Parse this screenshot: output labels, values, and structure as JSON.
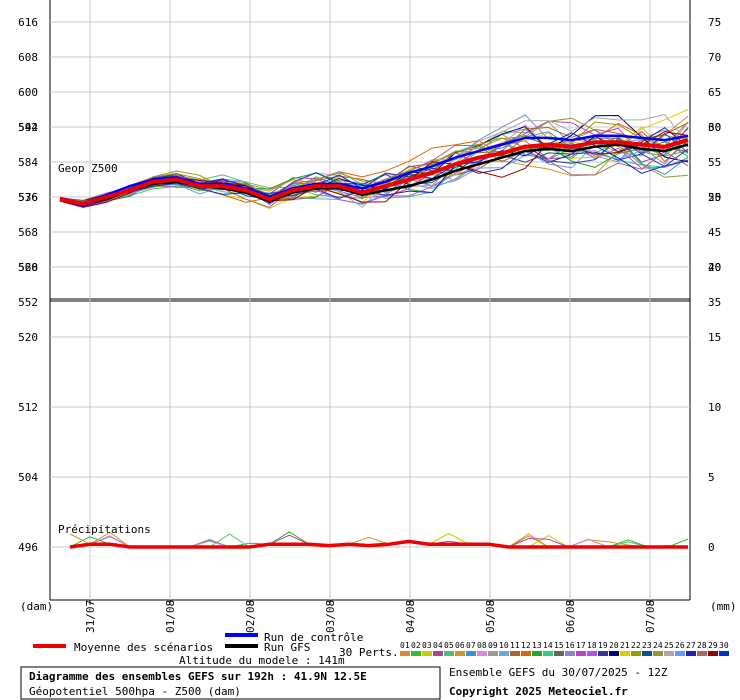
{
  "chart_data": {
    "type": "line",
    "x_labels": [
      "31/07",
      "01/08",
      "02/08",
      "03/08",
      "04/08",
      "05/08",
      "06/08",
      "07/08"
    ],
    "top_panel": {
      "label": "Geop Z500",
      "left_ticks": [
        616,
        608,
        600,
        592,
        584,
        576,
        568,
        560,
        552
      ],
      "right_ticks": [
        75,
        70,
        65,
        60,
        55,
        50,
        45,
        40,
        35
      ],
      "ylim": [
        552,
        620
      ],
      "mean": [
        575.5,
        574.5,
        576,
        577.5,
        579.5,
        580,
        578.5,
        578.5,
        577.5,
        575.5,
        577.5,
        578.5,
        578.5,
        577,
        578.5,
        580,
        581.5,
        583.5,
        585,
        586,
        587.5,
        588,
        587.5,
        588.5,
        588.5,
        588,
        587.5,
        589
      ],
      "control": [
        575.5,
        574,
        576.5,
        578.5,
        580,
        580.5,
        579,
        579,
        578,
        576,
        578,
        579,
        579,
        578,
        579.5,
        581.5,
        583,
        585,
        586.5,
        588,
        589.5,
        589.5,
        589,
        590,
        590,
        589.5,
        589,
        590
      ],
      "gfs": [
        575.5,
        574.5,
        575.5,
        577.5,
        579,
        579.5,
        578.5,
        578,
        577,
        575,
        577,
        578,
        578,
        576.5,
        577.5,
        578.5,
        580,
        582,
        583.5,
        585,
        586.5,
        587,
        586.5,
        587.5,
        588,
        587,
        586.5,
        588
      ]
    },
    "bottom_panel": {
      "label": "Précipitations",
      "left_ticks": [
        552,
        544,
        536,
        528,
        520,
        512,
        504,
        496
      ],
      "right_ticks": [
        35,
        30,
        25,
        20,
        15,
        10,
        5,
        0
      ],
      "ylim": [
        0,
        35
      ],
      "mean": [
        0,
        0.2,
        0.2,
        0,
        0,
        0,
        0,
        0,
        0,
        0,
        0.2,
        0.2,
        0.2,
        0.1,
        0.2,
        0.1,
        0.2,
        0.4,
        0.2,
        0.2,
        0.2,
        0.2,
        0,
        0,
        0,
        0,
        0,
        0,
        0,
        0,
        0,
        0
      ]
    },
    "left_unit": "(dam)",
    "right_unit": "(mm)"
  },
  "legend": {
    "mean_label": "Moyenne des scénarios",
    "control_label": "Run de contrôle",
    "gfs_label": "Run GFS",
    "perts_label": "30 Perts.",
    "altitude": "Altitude du modele : 141m",
    "members": [
      "01",
      "02",
      "03",
      "04",
      "05",
      "06",
      "07",
      "08",
      "09",
      "10",
      "11",
      "12",
      "13",
      "14",
      "15",
      "16",
      "17",
      "18",
      "19",
      "20",
      "21",
      "22",
      "23",
      "24",
      "25",
      "26",
      "27",
      "28",
      "29",
      "30"
    ],
    "member_colors": [
      "#dd8833",
      "#33bb33",
      "#cccc00",
      "#aa4499",
      "#55bb77",
      "#cc9922",
      "#3399cc",
      "#dd88dd",
      "#999999",
      "#66aadd",
      "#aa6622",
      "#dd6600",
      "#22aa22",
      "#33cc88",
      "#666666",
      "#8888cc",
      "#bb44cc",
      "#aa55ee",
      "#333399",
      "#000077",
      "#ddcc00",
      "#999900",
      "#005599",
      "#999933",
      "#aaaaaa",
      "#6699ff",
      "#2222aa",
      "#aa6666",
      "#990000",
      "#0033cc"
    ]
  },
  "footer": {
    "title": "Diagramme des ensembles GEFS sur 192h : 41.9N 12.5E",
    "subtitle": "Géopotentiel 500hpa - Z500 (dam)",
    "run": "Ensemble GEFS du 30/07/2025 - 12Z",
    "copyright": "Copyright 2025 Meteociel.fr"
  }
}
